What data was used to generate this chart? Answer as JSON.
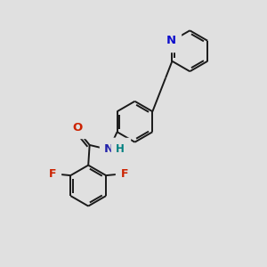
{
  "background_color": "#e0e0e0",
  "bond_color": "#1a1a1a",
  "bond_width": 1.4,
  "figsize": [
    3.0,
    3.0
  ],
  "dpi": 100,
  "atoms": {
    "N_pyridine": {
      "label": "N",
      "color": "#1010cc",
      "fontsize": 9.5
    },
    "O": {
      "label": "O",
      "color": "#cc2200",
      "fontsize": 9.5
    },
    "N_amide": {
      "label": "N",
      "color": "#2222aa",
      "fontsize": 9.5
    },
    "H_amide": {
      "label": "H",
      "color": "#008080",
      "fontsize": 8.5
    },
    "F1": {
      "label": "F",
      "color": "#cc2200",
      "fontsize": 9
    },
    "F2": {
      "label": "F",
      "color": "#cc2200",
      "fontsize": 9
    }
  }
}
